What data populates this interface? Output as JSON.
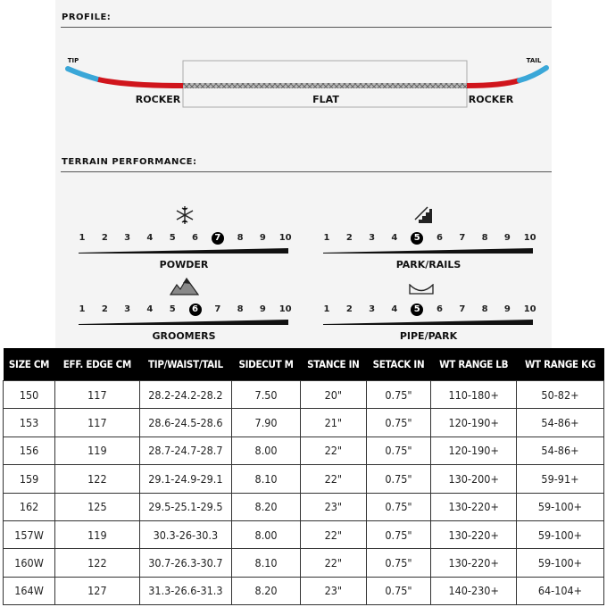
{
  "profile": {
    "title": "PROFILE:",
    "tip": "TIP",
    "tail": "TAIL",
    "left_zone": "ROCKER",
    "center_zone": "FLAT",
    "right_zone": "ROCKER",
    "colors": {
      "tip": "#3aa7d8",
      "rocker": "#d0151c",
      "flat": "#9a9a9a"
    }
  },
  "terrain": {
    "title": "TERRAIN PERFORMANCE:",
    "scale": [
      "1",
      "2",
      "3",
      "4",
      "5",
      "6",
      "7",
      "8",
      "9",
      "10"
    ],
    "ratings": [
      {
        "label": "POWDER",
        "icon": "snowflake-icon",
        "value": 7
      },
      {
        "label": "PARK/RAILS",
        "icon": "stairs-rail-icon",
        "value": 5
      },
      {
        "label": "GROOMERS",
        "icon": "mountains-icon",
        "value": 6
      },
      {
        "label": "PIPE/PARK",
        "icon": "halfpipe-icon",
        "value": 5
      }
    ]
  },
  "specs": {
    "headers": [
      "SIZE CM",
      "EFF. EDGE CM",
      "TIP/WAIST/TAIL",
      "SIDECUT M",
      "STANCE IN",
      "SETACK IN",
      "WT RANGE LB",
      "WT RANGE KG"
    ],
    "rows": [
      [
        "150",
        "117",
        "28.2-24.2-28.2",
        "7.50",
        "20\"",
        "0.75\"",
        "110-180+",
        "50-82+"
      ],
      [
        "153",
        "117",
        "28.6-24.5-28.6",
        "7.90",
        "21\"",
        "0.75\"",
        "120-190+",
        "54-86+"
      ],
      [
        "156",
        "119",
        "28.7-24.7-28.7",
        "8.00",
        "22\"",
        "0.75\"",
        "120-190+",
        "54-86+"
      ],
      [
        "159",
        "122",
        "29.1-24.9-29.1",
        "8.10",
        "22\"",
        "0.75\"",
        "130-200+",
        "59-91+"
      ],
      [
        "162",
        "125",
        "29.5-25.1-29.5",
        "8.20",
        "23\"",
        "0.75\"",
        "130-220+",
        "59-100+"
      ],
      [
        "157W",
        "119",
        "30.3-26-30.3",
        "8.00",
        "22\"",
        "0.75\"",
        "130-220+",
        "59-100+"
      ],
      [
        "160W",
        "122",
        "30.7-26.3-30.7",
        "8.10",
        "22\"",
        "0.75\"",
        "130-220+",
        "59-100+"
      ],
      [
        "164W",
        "127",
        "31.3-26.6-31.3",
        "8.20",
        "23\"",
        "0.75\"",
        "140-230+",
        "64-104+"
      ]
    ]
  }
}
